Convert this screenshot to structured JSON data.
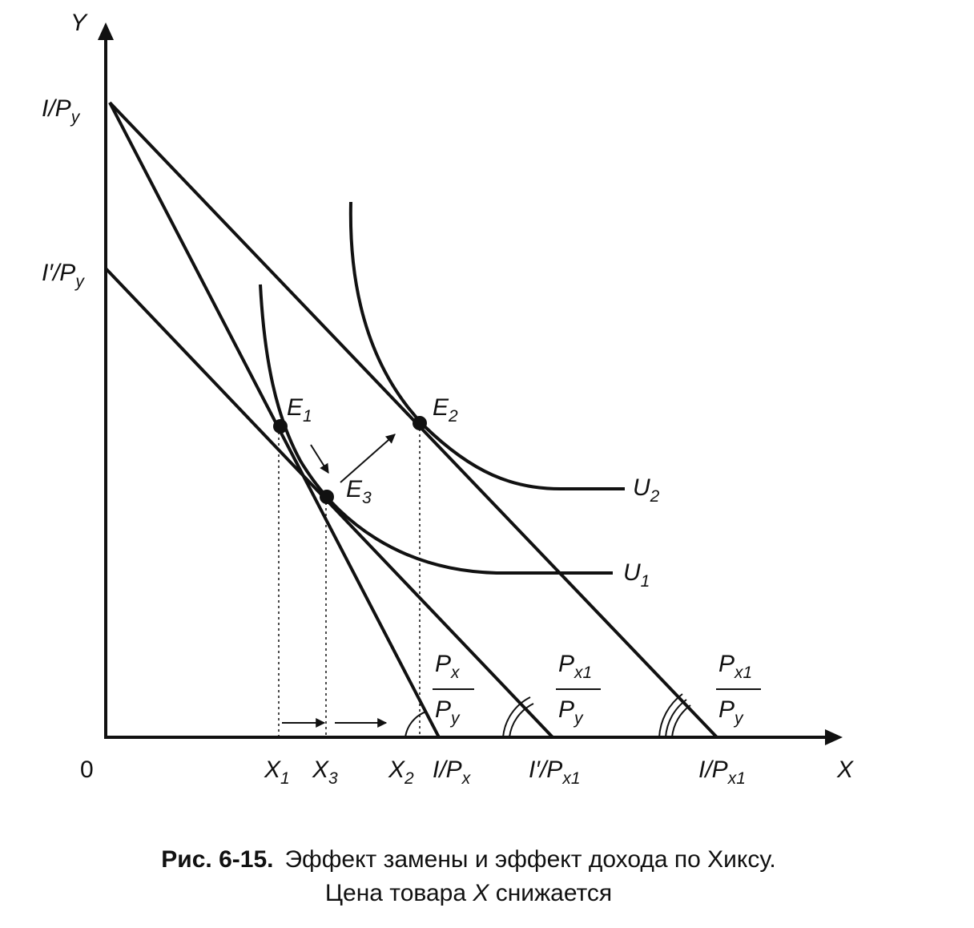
{
  "axes": {
    "y_label": "Y",
    "x_label": "X",
    "origin": "0"
  },
  "y_intercepts": [
    {
      "base": "I/P",
      "sub": "y"
    },
    {
      "base": "I′/P",
      "sub": "y"
    }
  ],
  "x_intercepts": [
    {
      "base": "I/P",
      "sub": "x"
    },
    {
      "base": "I′/P",
      "sub": "x1"
    },
    {
      "base": "I/P",
      "sub": "x1"
    }
  ],
  "x_points": [
    {
      "base": "X",
      "sub": "1"
    },
    {
      "base": "X",
      "sub": "3"
    },
    {
      "base": "X",
      "sub": "2"
    }
  ],
  "points": [
    {
      "base": "E",
      "sub": "1"
    },
    {
      "base": "E",
      "sub": "2"
    },
    {
      "base": "E",
      "sub": "3"
    }
  ],
  "curves": [
    {
      "base": "U",
      "sub": "2"
    },
    {
      "base": "U",
      "sub": "1"
    }
  ],
  "slopes": [
    {
      "numerator": {
        "base": "P",
        "sub": "x"
      },
      "denominator": {
        "base": "P",
        "sub": "y"
      }
    },
    {
      "numerator": {
        "base": "P",
        "sub": "x1"
      },
      "denominator": {
        "base": "P",
        "sub": "y"
      }
    },
    {
      "numerator": {
        "base": "P",
        "sub": "x1"
      },
      "denominator": {
        "base": "P",
        "sub": "y"
      }
    }
  ],
  "caption": {
    "label": "Рис. 6-15.",
    "line1": "Эффект замены и эффект дохода по Хиксу.",
    "line2_parts": [
      "Цена товара ",
      "X",
      " снижается"
    ]
  }
}
